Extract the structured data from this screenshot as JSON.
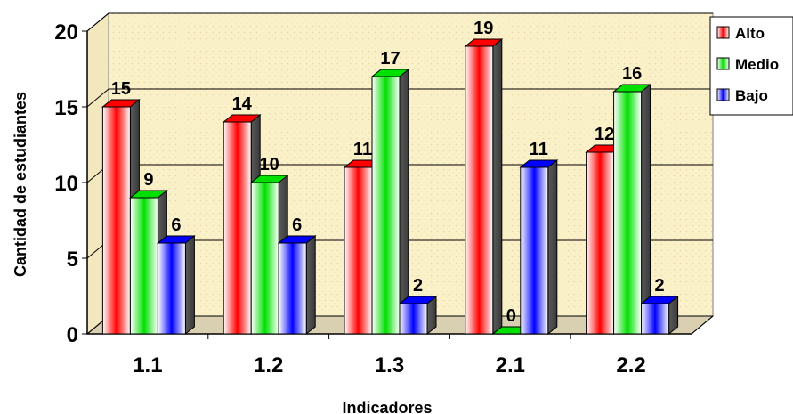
{
  "chart_data": {
    "type": "bar",
    "categories": [
      "1.1",
      "1.2",
      "1.3",
      "2.1",
      "2.2"
    ],
    "series": [
      {
        "name": "Alto",
        "values": [
          15,
          14,
          11,
          19,
          12
        ],
        "color": "#ff0000"
      },
      {
        "name": "Medio",
        "values": [
          9,
          10,
          17,
          0,
          16
        ],
        "color": "#00e000"
      },
      {
        "name": "Bajo",
        "values": [
          6,
          6,
          2,
          11,
          2
        ],
        "color": "#0000ff"
      }
    ],
    "xlabel": "Indicadores",
    "ylabel": "Cantidad de estudiantes",
    "ylim": [
      0,
      20
    ],
    "yticks": [
      "0",
      "5",
      "10",
      "15",
      "20"
    ],
    "grid": true,
    "legend_position": "top-right",
    "three_d": true,
    "plot_background": "#fbf1c9"
  }
}
